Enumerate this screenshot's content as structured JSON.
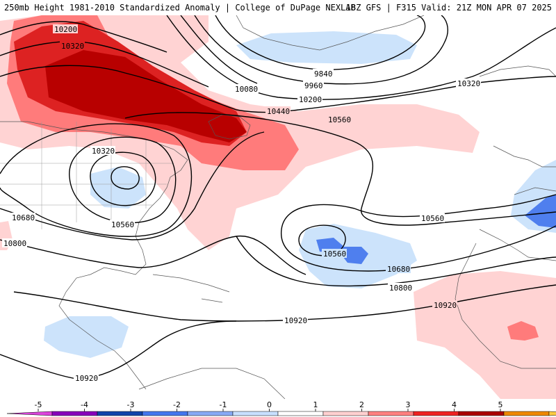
{
  "header": {
    "left_text": "250mb Height 1981-2010 Standardized Anomaly | College of DuPage NEXLAB",
    "right_text": "18Z GFS | F315 Valid: 21Z MON APR 07 2025"
  },
  "contour_labels": [
    "10200",
    "10320",
    "10080",
    "9840",
    "9960",
    "10200",
    "10320",
    "10440",
    "10560",
    "10320",
    "10560",
    "10680",
    "10800",
    "10560",
    "10560",
    "10680",
    "10800",
    "10920",
    "10920",
    "10920"
  ],
  "colorbar": {
    "ticks": [
      "-5",
      "-4",
      "-3",
      "-2",
      "-1",
      "0",
      "1",
      "2",
      "3",
      "4",
      "5"
    ],
    "colors": [
      "#dd44dd",
      "#8800bb",
      "#1144aa",
      "#4477ee",
      "#88aaf5",
      "#c8e0ff",
      "#ffffff",
      "#ffd0d0",
      "#ff8080",
      "#ee2222",
      "#aa0000",
      "#ee8800",
      "#ffcc44"
    ]
  },
  "palette": {
    "neg1": "#cce3fb",
    "neg2": "#4f7fee",
    "pos1": "#ffd3d3",
    "pos2": "#ff7b7b",
    "pos3": "#dd2222",
    "pos4": "#b80000"
  }
}
